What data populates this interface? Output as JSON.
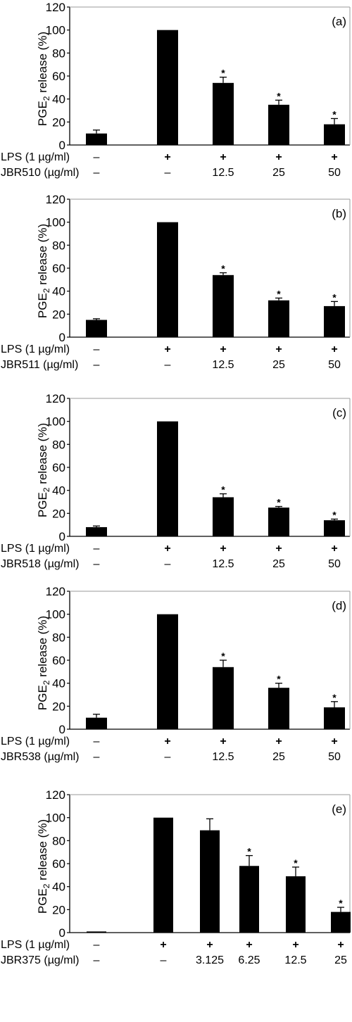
{
  "chart_data": [
    {
      "type": "bar",
      "panel_label": "(a)",
      "ylabel": "PGE",
      "ylabel_sub": "2",
      "ylabel_rest": " release (%)",
      "ylim": [
        0,
        120
      ],
      "yticks": [
        0,
        20,
        40,
        60,
        80,
        100,
        120
      ],
      "values": [
        10,
        100,
        54,
        35,
        18
      ],
      "errors": [
        3,
        0,
        5,
        4,
        5
      ],
      "significant": [
        false,
        false,
        true,
        true,
        true
      ],
      "significance_marker": "*",
      "row1_label": "LPS (1 µg/ml)",
      "row1_values": [
        "–",
        "+",
        "+",
        "+",
        "+"
      ],
      "row2_label": "JBR510 (µg/ml)",
      "row2_values": [
        "–",
        "–",
        "12.5",
        "25",
        "50"
      ]
    },
    {
      "type": "bar",
      "panel_label": "(b)",
      "ylabel": "PGE",
      "ylabel_sub": "2",
      "ylabel_rest": " release (%)",
      "ylim": [
        0,
        120
      ],
      "yticks": [
        0,
        20,
        40,
        60,
        80,
        100,
        120
      ],
      "values": [
        15,
        100,
        54,
        32,
        27
      ],
      "errors": [
        1,
        0,
        2,
        2,
        4
      ],
      "significant": [
        false,
        false,
        true,
        true,
        true
      ],
      "significance_marker": "*",
      "row1_label": "LPS (1 µg/ml)",
      "row1_values": [
        "–",
        "+",
        "+",
        "+",
        "+"
      ],
      "row2_label": "JBR511 (µg/ml)",
      "row2_values": [
        "–",
        "–",
        "12.5",
        "25",
        "50"
      ]
    },
    {
      "type": "bar",
      "panel_label": "(c)",
      "ylabel": "PGE",
      "ylabel_sub": "2",
      "ylabel_rest": " release (%)",
      "ylim": [
        0,
        120
      ],
      "yticks": [
        0,
        20,
        40,
        60,
        80,
        100,
        120
      ],
      "values": [
        8,
        100,
        34,
        25,
        14
      ],
      "errors": [
        1,
        0,
        3,
        1,
        1
      ],
      "significant": [
        false,
        false,
        true,
        true,
        true
      ],
      "significance_marker": "*",
      "row1_label": "LPS (1 µg/ml)",
      "row1_values": [
        "–",
        "+",
        "+",
        "+",
        "+"
      ],
      "row2_label": "JBR518 (µg/ml)",
      "row2_values": [
        "–",
        "–",
        "12.5",
        "25",
        "50"
      ]
    },
    {
      "type": "bar",
      "panel_label": "(d)",
      "ylabel": "PGE",
      "ylabel_sub": "2",
      "ylabel_rest": " release (%)",
      "ylim": [
        0,
        120
      ],
      "yticks": [
        0,
        20,
        40,
        60,
        80,
        100,
        120
      ],
      "values": [
        10,
        100,
        54,
        36,
        19
      ],
      "errors": [
        3,
        0,
        6,
        4,
        5
      ],
      "significant": [
        false,
        false,
        true,
        true,
        true
      ],
      "significance_marker": "*",
      "row1_label": "LPS (1 µg/ml)",
      "row1_values": [
        "–",
        "+",
        "+",
        "+",
        "+"
      ],
      "row2_label": "JBR538 (µg/ml)",
      "row2_values": [
        "–",
        "–",
        "12.5",
        "25",
        "50"
      ]
    },
    {
      "type": "bar",
      "panel_label": "(e)",
      "ylabel": "PGE",
      "ylabel_sub": "2",
      "ylabel_rest": " release (%)",
      "ylim": [
        0,
        120
      ],
      "yticks": [
        0,
        20,
        40,
        60,
        80,
        100,
        120
      ],
      "values": [
        1,
        100,
        89,
        58,
        49,
        18
      ],
      "errors": [
        0,
        0,
        10,
        9,
        8,
        4
      ],
      "significant": [
        false,
        false,
        false,
        true,
        true,
        true
      ],
      "significance_marker": "*",
      "row1_label": "LPS (1 µg/ml)",
      "row1_values": [
        "–",
        "+",
        "+",
        "+",
        "+",
        "+"
      ],
      "row2_label": "JBR375 (µg/ml)",
      "row2_values": [
        "–",
        "–",
        "3.125",
        "6.25",
        "12.5",
        "25"
      ]
    }
  ]
}
